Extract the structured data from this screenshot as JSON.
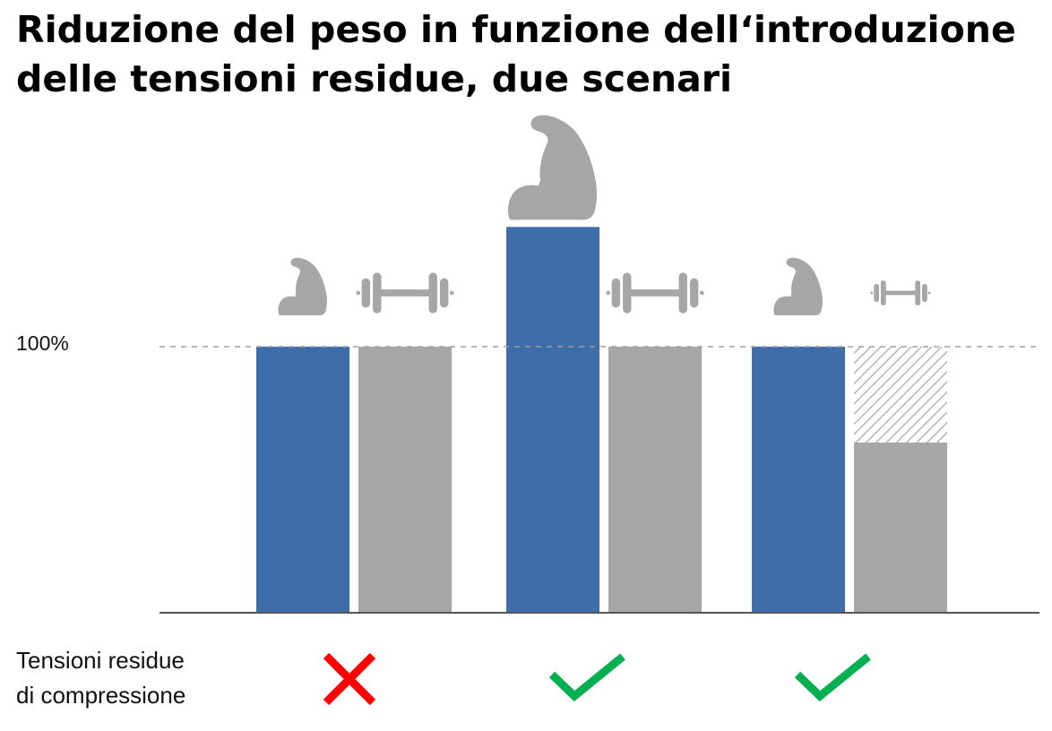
{
  "chart_data": {
    "type": "bar",
    "title": "Riduzione del peso in funzione dell‘introduzione delle tensioni residue, due scenari",
    "title_lines": [
      "Riduzione del peso in funzione dell‘introduzione",
      "delle tensioni residue, due scenari"
    ],
    "reference_line": {
      "value": 100,
      "label": "100%",
      "style": "dashed"
    },
    "ylim": [
      0,
      200
    ],
    "xlabel": "",
    "ylabel": "",
    "grid": false,
    "legend": "none",
    "groups": [
      {
        "bars": [
          {
            "icon": "strength-arm-icon",
            "icon_size": "medium",
            "value": 100,
            "color": "#3d6ea8"
          },
          {
            "icon": "dumbbell-icon",
            "icon_size": "large",
            "value": 100,
            "color": "#a6a6a6"
          }
        ],
        "residual_stress": false
      },
      {
        "bars": [
          {
            "icon": "strength-arm-icon",
            "icon_size": "large",
            "value": 145,
            "color": "#3d6ea8"
          },
          {
            "icon": "dumbbell-icon",
            "icon_size": "large",
            "value": 100,
            "color": "#a6a6a6"
          }
        ],
        "residual_stress": true
      },
      {
        "bars": [
          {
            "icon": "strength-arm-icon",
            "icon_size": "medium",
            "value": 100,
            "color": "#3d6ea8"
          },
          {
            "icon": "dumbbell-icon",
            "icon_size": "small",
            "value": 64,
            "saved_value": 36,
            "color": "#a6a6a6"
          }
        ],
        "residual_stress": true
      }
    ],
    "row_label_lines": [
      "Tensioni residue",
      "di compressione"
    ],
    "colors": {
      "strength": "#3d6ea8",
      "weight": "#a6a6a6",
      "icon": "#a6a6a6",
      "check": "#00b050",
      "cross": "#ff0000",
      "axis": "#555555",
      "reference": "#a0a0a0"
    }
  }
}
